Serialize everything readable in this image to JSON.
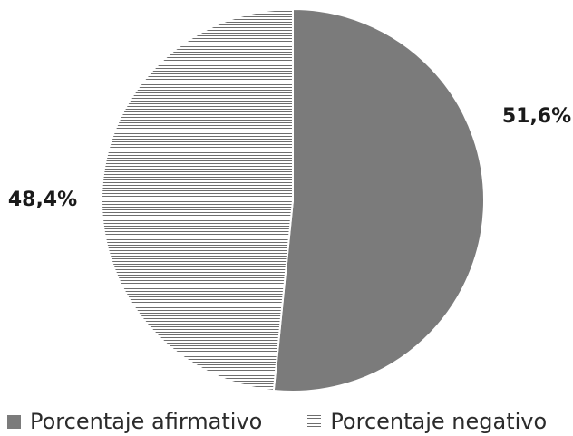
{
  "chart_data": {
    "type": "pie",
    "categories": [
      "Porcentaje afirmativo",
      "Porcentaje negativo"
    ],
    "values": [
      51.6,
      48.4
    ],
    "value_labels": [
      "51,6%",
      "48,4%"
    ],
    "title": "",
    "legend_position": "bottom",
    "colors": [
      "#7b7b7b",
      "#6e6e6e"
    ],
    "fill_styles": [
      "solid",
      "horizontal-stripes"
    ]
  },
  "legend": {
    "items": [
      {
        "label": "Porcentaje afirmativo"
      },
      {
        "label": "Porcentaje negativo"
      }
    ]
  }
}
